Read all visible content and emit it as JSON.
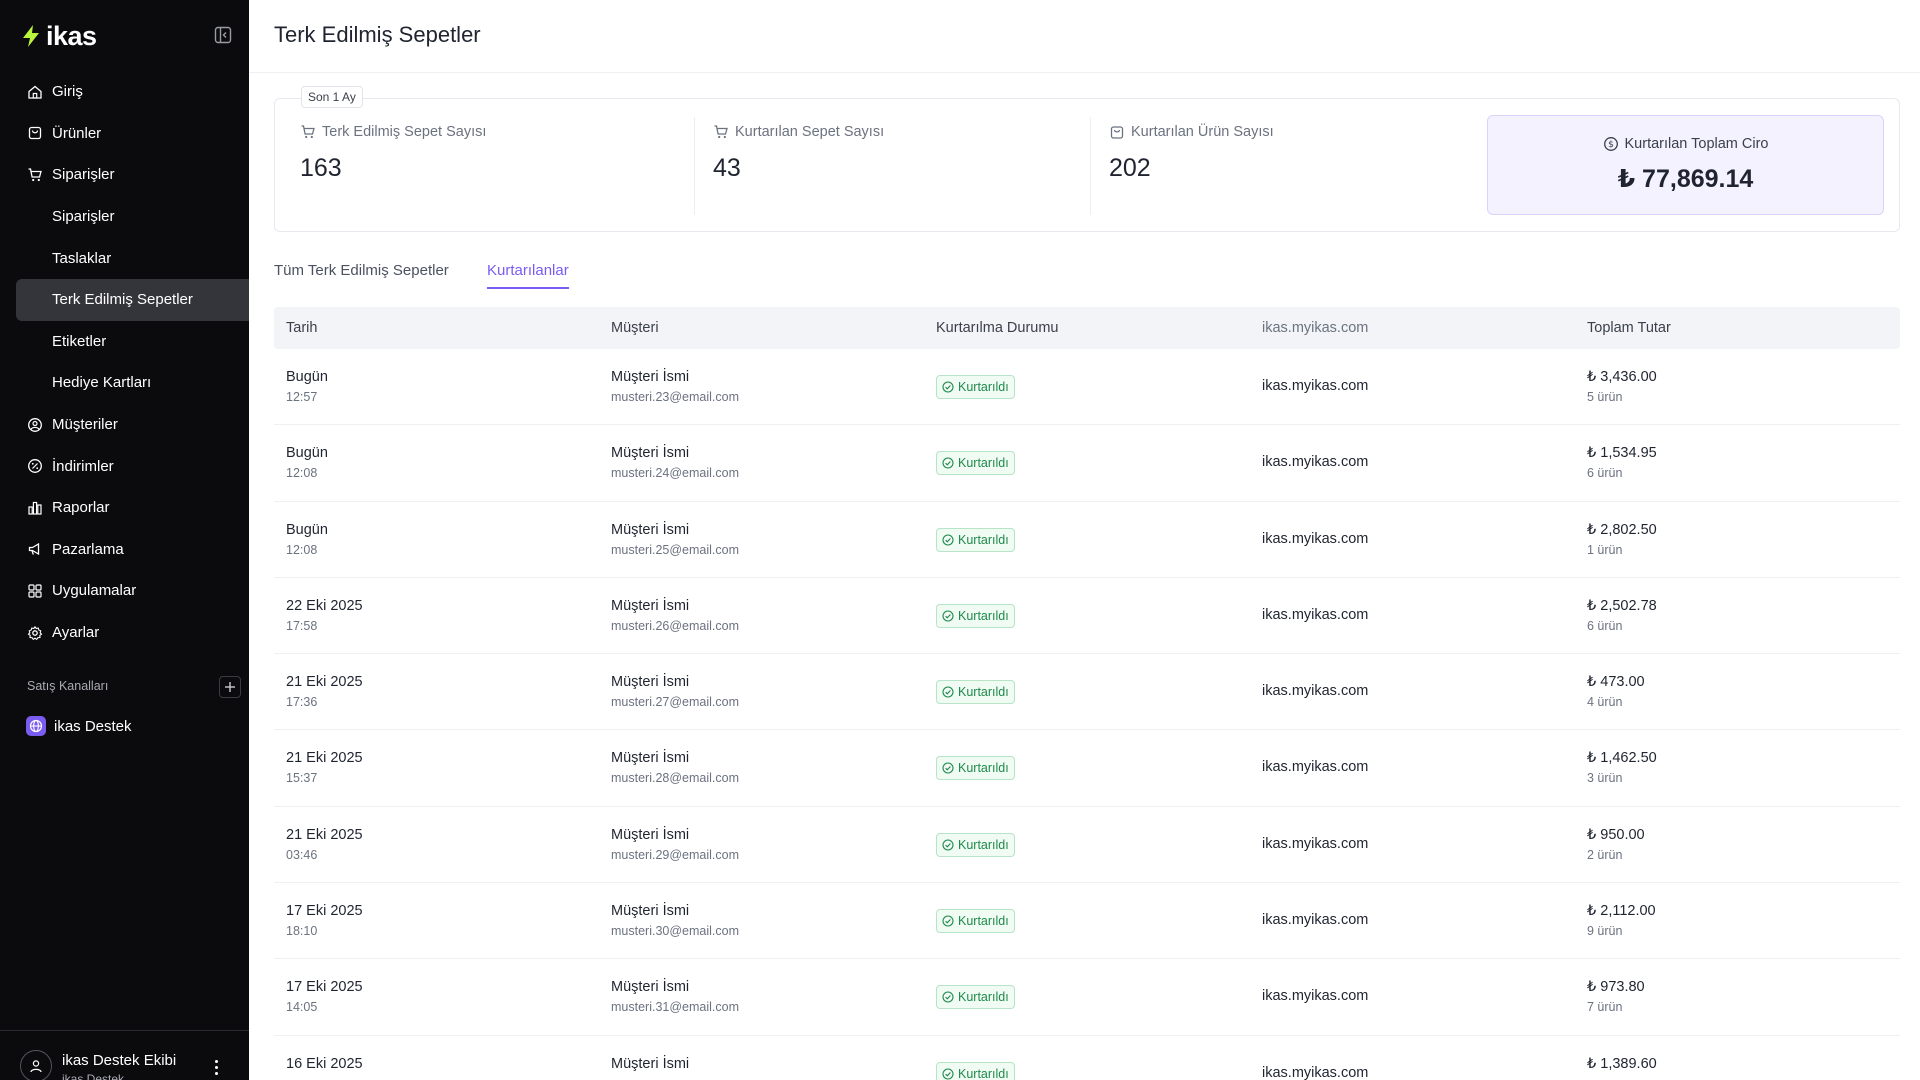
{
  "brand": {
    "name": "ikas",
    "accent": "#b8f53d",
    "primary": "#7b5cf0"
  },
  "sidebar": {
    "items": [
      {
        "label": "Giriş",
        "icon": "home-icon",
        "sub": false,
        "active": false
      },
      {
        "label": "Ürünler",
        "icon": "box-icon",
        "sub": false,
        "active": false
      },
      {
        "label": "Siparişler",
        "icon": "cart-icon",
        "sub": false,
        "active": false
      },
      {
        "label": "Siparişler",
        "icon": "",
        "sub": true,
        "active": false
      },
      {
        "label": "Taslaklar",
        "icon": "",
        "sub": true,
        "active": false
      },
      {
        "label": "Terk Edilmiş Sepetler",
        "icon": "",
        "sub": true,
        "active": true
      },
      {
        "label": "Etiketler",
        "icon": "",
        "sub": true,
        "active": false
      },
      {
        "label": "Hediye Kartları",
        "icon": "",
        "sub": true,
        "active": false
      },
      {
        "label": "Müşteriler",
        "icon": "user-circle-icon",
        "sub": false,
        "active": false
      },
      {
        "label": "İndirimler",
        "icon": "discount-icon",
        "sub": false,
        "active": false
      },
      {
        "label": "Raporlar",
        "icon": "chart-icon",
        "sub": false,
        "active": false
      },
      {
        "label": "Pazarlama",
        "icon": "megaphone-icon",
        "sub": false,
        "active": false
      },
      {
        "label": "Uygulamalar",
        "icon": "grid-icon",
        "sub": false,
        "active": false
      },
      {
        "label": "Ayarlar",
        "icon": "gear-icon",
        "sub": false,
        "active": false
      }
    ],
    "channels_title": "Satış Kanalları",
    "channel": "ikas Destek",
    "user": {
      "name": "ikas Destek Ekibi",
      "sub": "ikas Destek"
    }
  },
  "page": {
    "title": "Terk Edilmiş Sepetler"
  },
  "stats": {
    "period": "Son 1 Ay",
    "items": [
      {
        "label": "Terk Edilmiş Sepet Sayısı",
        "value": "163"
      },
      {
        "label": "Kurtarılan Sepet Sayısı",
        "value": "43"
      },
      {
        "label": "Kurtarılan Ürün Sayısı",
        "value": "202"
      }
    ],
    "highlight": {
      "label": "Kurtarılan Toplam Ciro",
      "value": "₺ 77,869.14"
    }
  },
  "tabs": [
    {
      "label": "Tüm Terk Edilmiş Sepetler",
      "active": false
    },
    {
      "label": "Kurtarılanlar",
      "active": true
    }
  ],
  "table": {
    "headers": [
      "Tarih",
      "Müşteri",
      "Kurtarılma Durumu",
      "ikas.myikas.com",
      "Toplam Tutar"
    ],
    "rows": [
      {
        "date": "Bugün",
        "time": "12:57",
        "name": "Müşteri İsmi",
        "email": "musteri.23@email.com",
        "status": "Kurtarıldı",
        "channel": "ikas.myikas.com",
        "total": "₺ 3,436.00",
        "items": "5 ürün"
      },
      {
        "date": "Bugün",
        "time": "12:08",
        "name": "Müşteri İsmi",
        "email": "musteri.24@email.com",
        "status": "Kurtarıldı",
        "channel": "ikas.myikas.com",
        "total": "₺ 1,534.95",
        "items": "6 ürün"
      },
      {
        "date": "Bugün",
        "time": "12:08",
        "name": "Müşteri İsmi",
        "email": "musteri.25@email.com",
        "status": "Kurtarıldı",
        "channel": "ikas.myikas.com",
        "total": "₺ 2,802.50",
        "items": "1 ürün"
      },
      {
        "date": "22 Eki 2025",
        "time": "17:58",
        "name": "Müşteri İsmi",
        "email": "musteri.26@email.com",
        "status": "Kurtarıldı",
        "channel": "ikas.myikas.com",
        "total": "₺ 2,502.78",
        "items": "6 ürün"
      },
      {
        "date": "21 Eki 2025",
        "time": "17:36",
        "name": "Müşteri İsmi",
        "email": "musteri.27@email.com",
        "status": "Kurtarıldı",
        "channel": "ikas.myikas.com",
        "total": "₺ 473.00",
        "items": "4 ürün"
      },
      {
        "date": "21 Eki 2025",
        "time": "15:37",
        "name": "Müşteri İsmi",
        "email": "musteri.28@email.com",
        "status": "Kurtarıldı",
        "channel": "ikas.myikas.com",
        "total": "₺ 1,462.50",
        "items": "3 ürün"
      },
      {
        "date": "21 Eki 2025",
        "time": "03:46",
        "name": "Müşteri İsmi",
        "email": "musteri.29@email.com",
        "status": "Kurtarıldı",
        "channel": "ikas.myikas.com",
        "total": "₺ 950.00",
        "items": "2 ürün"
      },
      {
        "date": "17 Eki 2025",
        "time": "18:10",
        "name": "Müşteri İsmi",
        "email": "musteri.30@email.com",
        "status": "Kurtarıldı",
        "channel": "ikas.myikas.com",
        "total": "₺ 2,112.00",
        "items": "9 ürün"
      },
      {
        "date": "17 Eki 2025",
        "time": "14:05",
        "name": "Müşteri İsmi",
        "email": "musteri.31@email.com",
        "status": "Kurtarıldı",
        "channel": "ikas.myikas.com",
        "total": "₺ 973.80",
        "items": "7 ürün"
      },
      {
        "date": "16 Eki 2025",
        "time": "",
        "name": "Müşteri İsmi",
        "email": "",
        "status": "Kurtarıldı",
        "channel": "ikas.myikas.com",
        "total": "₺ 1,389.60",
        "items": ""
      }
    ]
  }
}
